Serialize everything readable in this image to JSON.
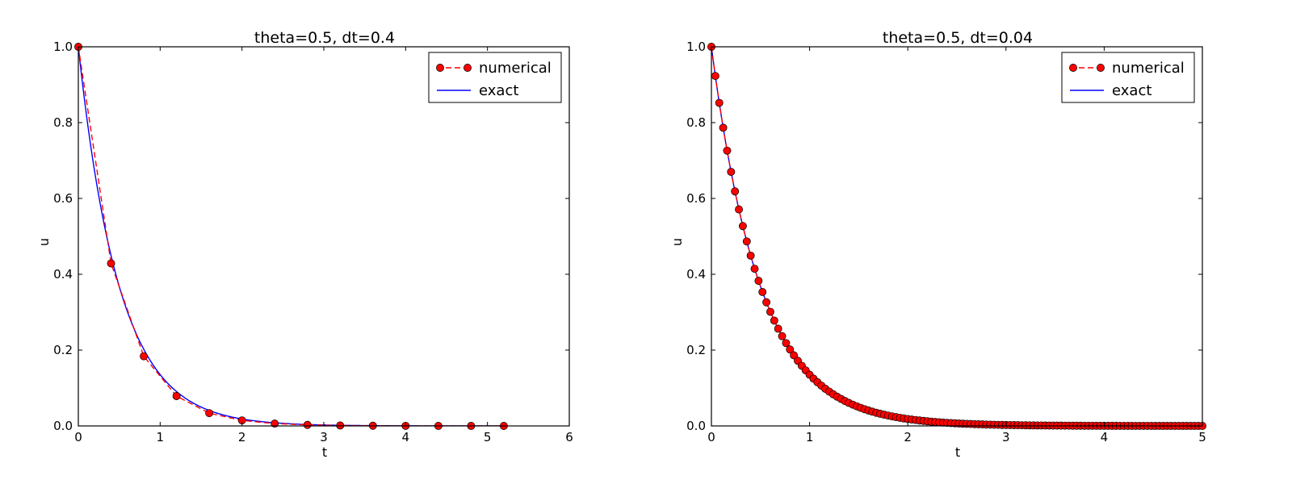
{
  "chart_data": [
    {
      "type": "line",
      "title": "theta=0.5, dt=0.4",
      "xlabel": "t",
      "ylabel": "u",
      "xlim": [
        0,
        6
      ],
      "ylim": [
        0,
        1.0
      ],
      "xticks": [
        "0",
        "1",
        "2",
        "3",
        "4",
        "5",
        "6"
      ],
      "yticks": [
        "0.0",
        "0.2",
        "0.4",
        "0.6",
        "0.8",
        "1.0"
      ],
      "grid": false,
      "legend_position": "top-right",
      "series": [
        {
          "name": "numerical",
          "style": "dashed-with-circles",
          "color": "#ff0000",
          "marker_color": "#ff0000",
          "x": [
            0,
            0.4,
            0.8,
            1.2,
            1.6,
            2.0,
            2.4,
            2.8,
            3.2,
            3.6,
            4.0,
            4.4,
            4.8,
            5.2
          ],
          "values": [
            1.0,
            0.4286,
            0.1837,
            0.0787,
            0.0337,
            0.0145,
            0.0062,
            0.0027,
            0.0011,
            0.0005,
            0.0002,
            0.0001,
            4e-05,
            2e-05
          ]
        },
        {
          "name": "exact",
          "style": "solid",
          "color": "#0000ff",
          "function": "exp(-2t)",
          "x_range": [
            0,
            5.2
          ]
        }
      ]
    },
    {
      "type": "line",
      "title": "theta=0.5, dt=0.04",
      "xlabel": "t",
      "ylabel": "u",
      "xlim": [
        0,
        5
      ],
      "ylim": [
        0,
        1.0
      ],
      "xticks": [
        "0",
        "1",
        "2",
        "3",
        "4",
        "5"
      ],
      "yticks": [
        "0.0",
        "0.2",
        "0.4",
        "0.6",
        "0.8",
        "1.0"
      ],
      "grid": false,
      "legend_position": "top-right",
      "series": [
        {
          "name": "numerical",
          "style": "dashed-with-circles",
          "color": "#ff0000",
          "marker_color": "#ff0000",
          "function": "((1-0.04)/(1+0.04))^(t/0.04)",
          "x_range": [
            0,
            5
          ],
          "dt": 0.04
        },
        {
          "name": "exact",
          "style": "solid",
          "color": "#0000ff",
          "function": "exp(-2t)",
          "x_range": [
            0,
            5
          ]
        }
      ]
    }
  ]
}
